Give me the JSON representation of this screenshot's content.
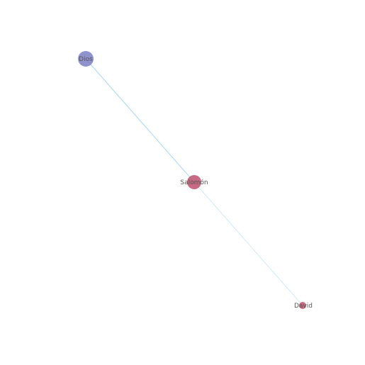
{
  "graph": {
    "nodes": [
      {
        "id": "dios",
        "label": "Dios",
        "color": "#7b7fc4"
      },
      {
        "id": "salomon",
        "label": "Salomón",
        "color": "#c0506e"
      },
      {
        "id": "david",
        "label": "David",
        "color": "#c0506e"
      }
    ],
    "edges": [
      {
        "source": "dios",
        "target": "salomon"
      },
      {
        "source": "salomon",
        "target": "david"
      }
    ],
    "colors": {
      "edge": "#a8d8f0",
      "background": "#ffffff"
    }
  }
}
